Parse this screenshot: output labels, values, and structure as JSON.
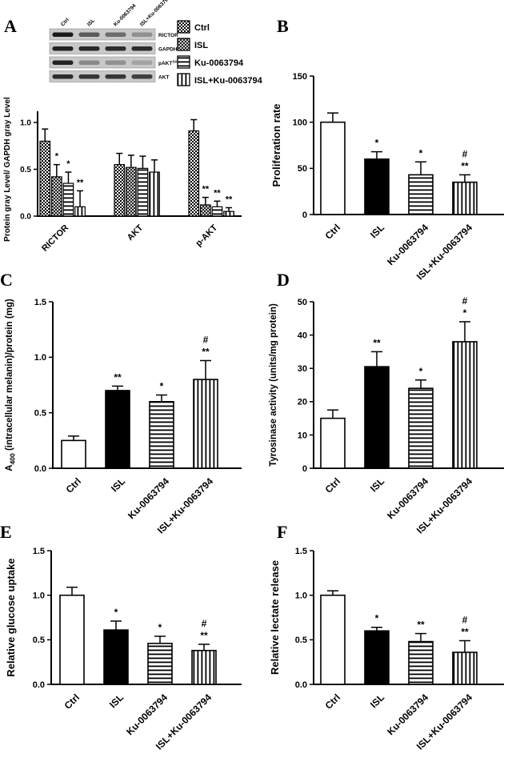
{
  "figure": {
    "background": "#ffffff",
    "ink": "#000000"
  },
  "western_blot": {
    "lane_labels": [
      "Ctrl",
      "ISL",
      "Ku-0063794",
      "ISL+Ku-0063794"
    ],
    "rows": [
      {
        "label": "RICTOR",
        "bands": [
          0.95,
          0.6,
          0.5,
          0.3
        ]
      },
      {
        "label": "GAPDH",
        "bands": [
          0.9,
          0.88,
          0.85,
          0.85
        ]
      },
      {
        "label": "pAKT",
        "label_parts": [
          {
            "t": "pAKT"
          },
          {
            "t": "S473",
            "sup": true
          }
        ],
        "bands": [
          0.9,
          0.35,
          0.3,
          0.2
        ]
      },
      {
        "label": "AKT",
        "bands": [
          0.85,
          0.8,
          0.8,
          0.75
        ]
      }
    ]
  },
  "legend": {
    "items": [
      {
        "label": "Ctrl",
        "pattern": "checker"
      },
      {
        "label": "ISL",
        "pattern": "crosshatch"
      },
      {
        "label": "Ku-0063794",
        "pattern": "hlines"
      },
      {
        "label": "ISL+Ku-0063794",
        "pattern": "vlines"
      }
    ]
  },
  "chart_data": [
    {
      "panel": "A",
      "type": "bar",
      "grouped": true,
      "ylabel": "Protein gray Level/ GAPDH gray Level",
      "ylim": [
        0,
        1.0
      ],
      "yticks": [
        "0.0",
        "0.5",
        "1.0"
      ],
      "categories": [
        "RICTOR",
        "AKT",
        "p-AKT"
      ],
      "series": [
        {
          "name": "Ctrl",
          "pattern": "checker",
          "values": [
            0.8,
            0.55,
            0.91
          ],
          "errors": [
            0.13,
            0.12,
            0.12
          ],
          "sig": [
            "",
            "",
            ""
          ]
        },
        {
          "name": "ISL",
          "pattern": "crosshatch",
          "values": [
            0.42,
            0.52,
            0.12
          ],
          "errors": [
            0.13,
            0.13,
            0.08
          ],
          "sig": [
            "*",
            "",
            "**"
          ]
        },
        {
          "name": "Ku-0063794",
          "pattern": "hlines",
          "values": [
            0.35,
            0.51,
            0.1
          ],
          "errors": [
            0.12,
            0.13,
            0.06
          ],
          "sig": [
            "*",
            "",
            "**"
          ]
        },
        {
          "name": "ISL+Ku-0063794",
          "pattern": "vlines",
          "values": [
            0.1,
            0.47,
            0.05
          ],
          "errors": [
            0.17,
            0.13,
            0.04
          ],
          "sig": [
            "**",
            "",
            "**"
          ]
        }
      ]
    },
    {
      "panel": "B",
      "type": "bar",
      "ylabel": "Proliferation rate",
      "ylim": [
        0,
        150
      ],
      "yticks": [
        "0",
        "50",
        "100",
        "150"
      ],
      "categories": [
        "Ctrl",
        "ISL",
        "Ku-0063794",
        "ISL+Ku-0063794"
      ],
      "bars": [
        {
          "pattern": "white",
          "value": 100,
          "error": 10,
          "sig": []
        },
        {
          "pattern": "solid",
          "value": 60,
          "error": 8,
          "sig": [
            "*"
          ]
        },
        {
          "pattern": "hlines",
          "value": 43,
          "error": 14,
          "sig": [
            "*"
          ]
        },
        {
          "pattern": "vlines",
          "value": 35,
          "error": 8,
          "sig": [
            "**",
            "#"
          ]
        }
      ]
    },
    {
      "panel": "C",
      "type": "bar",
      "ylabel": "A400 (intracellular melanin)/protein (mg)",
      "ylabel_parts": [
        {
          "t": "A"
        },
        {
          "t": "400",
          "sub": true
        },
        {
          "t": " (intracellular melanin)/protein (mg)"
        }
      ],
      "ylim": [
        0,
        1.5
      ],
      "yticks": [
        "0.0",
        "0.5",
        "1.0",
        "1.5"
      ],
      "categories": [
        "Ctrl",
        "ISL",
        "Ku-0063794",
        "ISL+Ku-0063794"
      ],
      "bars": [
        {
          "pattern": "white",
          "value": 0.25,
          "error": 0.04,
          "sig": []
        },
        {
          "pattern": "solid",
          "value": 0.7,
          "error": 0.04,
          "sig": [
            "**"
          ]
        },
        {
          "pattern": "hlines",
          "value": 0.6,
          "error": 0.06,
          "sig": [
            "*"
          ]
        },
        {
          "pattern": "vlines",
          "value": 0.8,
          "error": 0.17,
          "sig": [
            "**",
            "#"
          ]
        }
      ]
    },
    {
      "panel": "D",
      "type": "bar",
      "ylabel": "Tyrosinase activity (units/mg protein)",
      "ylim": [
        0,
        50
      ],
      "yticks": [
        "0",
        "10",
        "20",
        "30",
        "40",
        "50"
      ],
      "categories": [
        "Ctrl",
        "ISL",
        "Ku-0063794",
        "ISL+Ku-0063794"
      ],
      "bars": [
        {
          "pattern": "white",
          "value": 15,
          "error": 2.5,
          "sig": []
        },
        {
          "pattern": "solid",
          "value": 30.5,
          "error": 4.5,
          "sig": [
            "**"
          ]
        },
        {
          "pattern": "hlines",
          "value": 24,
          "error": 2.5,
          "sig": [
            "*"
          ]
        },
        {
          "pattern": "vlines",
          "value": 38,
          "error": 6,
          "sig": [
            "*",
            "#"
          ]
        }
      ]
    },
    {
      "panel": "E",
      "type": "bar",
      "ylabel": "Relative glucose uptake",
      "ylim": [
        0,
        1.5
      ],
      "yticks": [
        "0.0",
        "0.5",
        "1.0",
        "1.5"
      ],
      "categories": [
        "Ctrl",
        "ISL",
        "Ku-0063794",
        "ISL+Ku-0063794"
      ],
      "bars": [
        {
          "pattern": "white",
          "value": 1.0,
          "error": 0.09,
          "sig": []
        },
        {
          "pattern": "solid",
          "value": 0.61,
          "error": 0.1,
          "sig": [
            "*"
          ]
        },
        {
          "pattern": "hlines",
          "value": 0.46,
          "error": 0.08,
          "sig": [
            "*"
          ]
        },
        {
          "pattern": "vlines",
          "value": 0.38,
          "error": 0.07,
          "sig": [
            "**",
            "#"
          ]
        }
      ]
    },
    {
      "panel": "F",
      "type": "bar",
      "ylabel": "Relative lectate release",
      "ylim": [
        0,
        1.5
      ],
      "yticks": [
        "0.0",
        "0.5",
        "1.0",
        "1.5"
      ],
      "categories": [
        "Ctrl",
        "ISL",
        "Ku-0063794",
        "ISL+Ku-0063794"
      ],
      "bars": [
        {
          "pattern": "white",
          "value": 1.0,
          "error": 0.05,
          "sig": []
        },
        {
          "pattern": "solid",
          "value": 0.6,
          "error": 0.04,
          "sig": [
            "*"
          ]
        },
        {
          "pattern": "hlines",
          "value": 0.48,
          "error": 0.09,
          "sig": [
            "**"
          ]
        },
        {
          "pattern": "vlines",
          "value": 0.36,
          "error": 0.13,
          "sig": [
            "**",
            "#"
          ]
        }
      ]
    }
  ]
}
